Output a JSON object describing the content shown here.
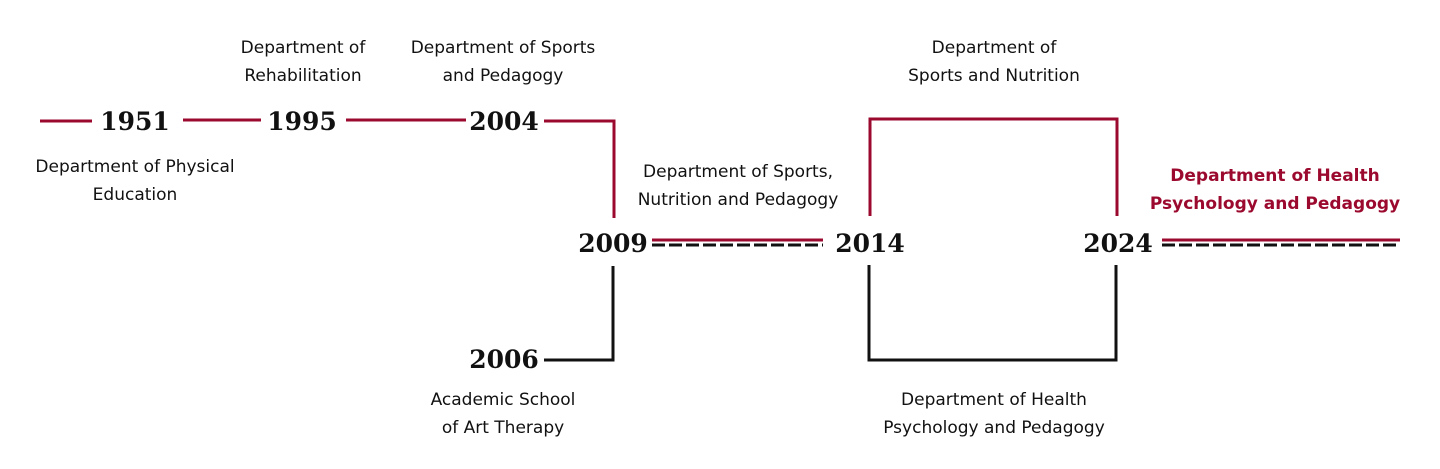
{
  "colors": {
    "accent": "#9b0a2e",
    "ink": "#111111"
  },
  "years": {
    "y1951": "1951",
    "y1995": "1995",
    "y2004": "2004",
    "y2006": "2006",
    "y2009": "2009",
    "y2014": "2014",
    "y2024": "2024"
  },
  "labels": {
    "l1951": [
      "Department of Physical",
      "Education"
    ],
    "l1995": [
      "Department of",
      "Rehabilitation"
    ],
    "l2004": [
      "Department of Sports",
      "and Pedagogy"
    ],
    "l2006": [
      "Academic School",
      "of Art Therapy"
    ],
    "l2009": [
      "Department of Sports,",
      "Nutrition and Pedagogy"
    ],
    "l2014top": [
      "Department of",
      "Sports and Nutrition"
    ],
    "l2014bottom": [
      "Department of Health",
      "Psychology and Pedagogy"
    ],
    "current": [
      "Department of Health",
      "Psychology and Pedagogy"
    ]
  }
}
